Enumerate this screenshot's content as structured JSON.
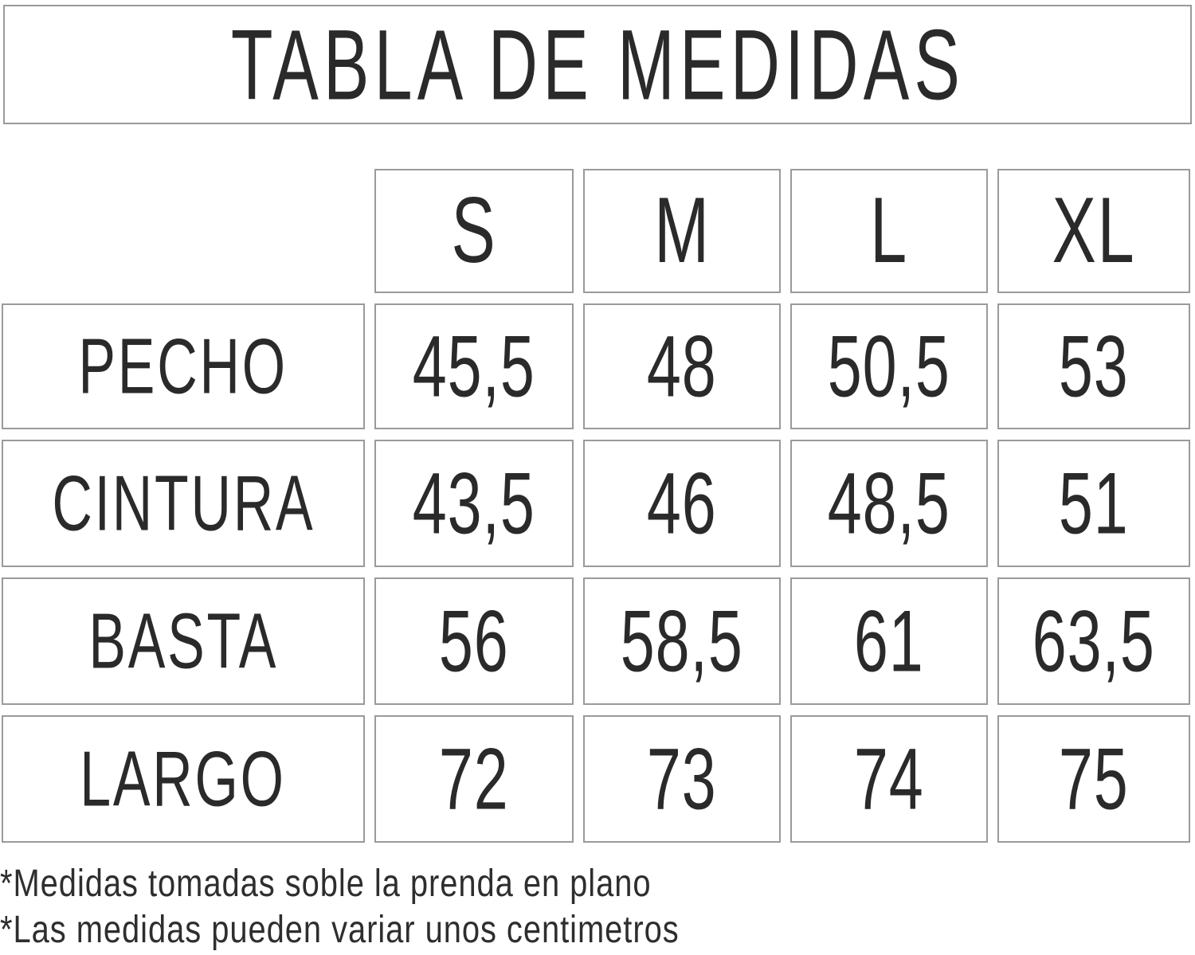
{
  "title": "TABLA DE MEDIDAS",
  "columns": [
    "S",
    "M",
    "L",
    "XL"
  ],
  "rows": [
    {
      "label": "PECHO",
      "values": [
        "45,5",
        "48",
        "50,5",
        "53"
      ]
    },
    {
      "label": "CINTURA",
      "values": [
        "43,5",
        "46",
        "48,5",
        "51"
      ]
    },
    {
      "label": "BASTA",
      "values": [
        "56",
        "58,5",
        "61",
        "63,5"
      ]
    },
    {
      "label": "LARGO",
      "values": [
        "72",
        "73",
        "74",
        "75"
      ]
    }
  ],
  "notes": [
    "*Medidas tomadas soble la prenda en plano",
    "*Las medidas pueden variar unos centimetros"
  ],
  "colors": {
    "border": "#9a9a9a",
    "text": "#2a2a2a",
    "background": "#ffffff"
  },
  "chart_data": {
    "type": "table",
    "title": "TABLA DE MEDIDAS",
    "columns": [
      "S",
      "M",
      "L",
      "XL"
    ],
    "row_labels": [
      "PECHO",
      "CINTURA",
      "BASTA",
      "LARGO"
    ],
    "values": [
      [
        45.5,
        48,
        50.5,
        53
      ],
      [
        43.5,
        46,
        48.5,
        51
      ],
      [
        56,
        58.5,
        61,
        63.5
      ],
      [
        72,
        73,
        74,
        75
      ]
    ],
    "notes": [
      "*Medidas tomadas soble la prenda en plano",
      "*Las medidas pueden variar unos centimetros"
    ],
    "layout": "row labels in left column, size columns S–XL, each cell an individual bordered box"
  }
}
